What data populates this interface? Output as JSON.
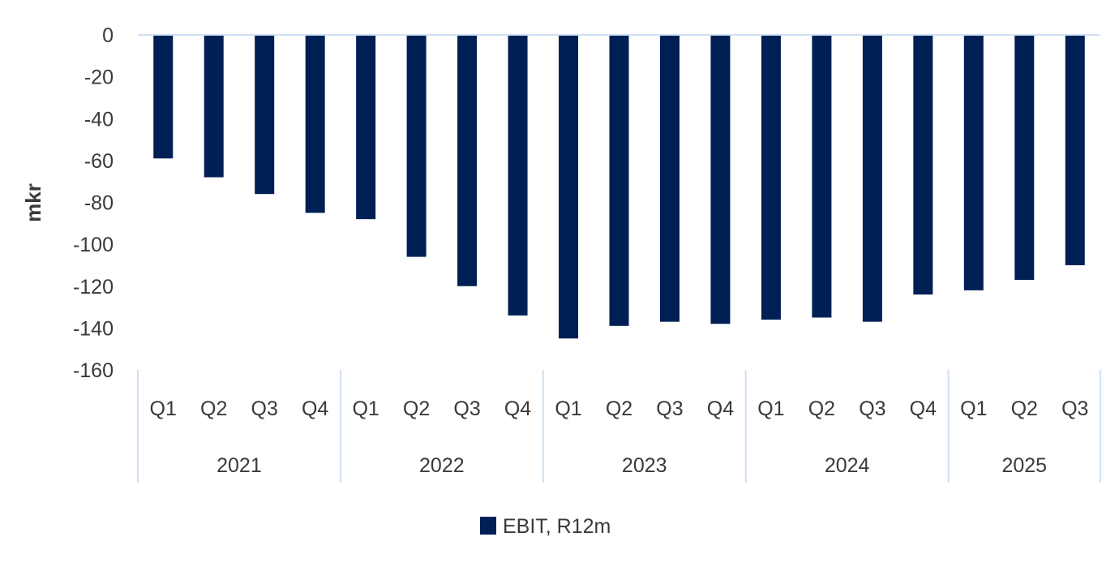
{
  "chart_data": {
    "type": "bar",
    "title": "",
    "xlabel": "",
    "ylabel": "mkr",
    "ylim": [
      -160,
      0
    ],
    "yticks": [
      0,
      -20,
      -40,
      -60,
      -80,
      -100,
      -120,
      -140,
      -160
    ],
    "groups": [
      {
        "label": "2021",
        "quarters": [
          "Q1",
          "Q2",
          "Q3",
          "Q4"
        ]
      },
      {
        "label": "2022",
        "quarters": [
          "Q1",
          "Q2",
          "Q3",
          "Q4"
        ]
      },
      {
        "label": "2023",
        "quarters": [
          "Q1",
          "Q2",
          "Q3",
          "Q4"
        ]
      },
      {
        "label": "2024",
        "quarters": [
          "Q1",
          "Q2",
          "Q3",
          "Q4"
        ]
      },
      {
        "label": "2025",
        "quarters": [
          "Q1",
          "Q2",
          "Q3"
        ]
      }
    ],
    "series": [
      {
        "name": "EBIT, R12m",
        "color": "#001F54",
        "values": [
          -59,
          -68,
          -76,
          -85,
          -88,
          -106,
          -120,
          -134,
          -145,
          -139,
          -137,
          -138,
          -136,
          -135,
          -137,
          -124,
          -122,
          -117,
          -110
        ]
      }
    ],
    "grid": false,
    "legend": "bottom-center",
    "axis_color": "#CFE0F3"
  }
}
